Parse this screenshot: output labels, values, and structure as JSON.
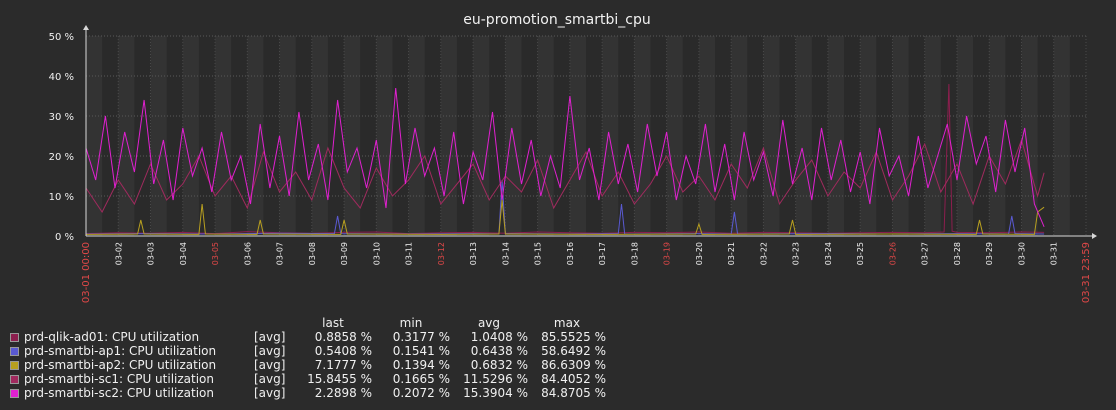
{
  "title": "eu-promotion_smartbi_cpu",
  "y_ticks": [
    "0 %",
    "10 %",
    "20 %",
    "30 %",
    "40 %",
    "50 %"
  ],
  "x_start_label": "03-01 00:00",
  "x_end_label": "03-31 23:59",
  "x_ticks": [
    {
      "label": "03-02",
      "red": false
    },
    {
      "label": "03-03",
      "red": false
    },
    {
      "label": "03-04",
      "red": false
    },
    {
      "label": "03-05",
      "red": true
    },
    {
      "label": "03-06",
      "red": false
    },
    {
      "label": "03-07",
      "red": false
    },
    {
      "label": "03-08",
      "red": false
    },
    {
      "label": "03-09",
      "red": false
    },
    {
      "label": "03-10",
      "red": false
    },
    {
      "label": "03-11",
      "red": false
    },
    {
      "label": "03-12",
      "red": true
    },
    {
      "label": "03-13",
      "red": false
    },
    {
      "label": "03-14",
      "red": false
    },
    {
      "label": "03-15",
      "red": false
    },
    {
      "label": "03-16",
      "red": false
    },
    {
      "label": "03-17",
      "red": false
    },
    {
      "label": "03-18",
      "red": false
    },
    {
      "label": "03-19",
      "red": true
    },
    {
      "label": "03-20",
      "red": false
    },
    {
      "label": "03-21",
      "red": false
    },
    {
      "label": "03-22",
      "red": false
    },
    {
      "label": "03-23",
      "red": false
    },
    {
      "label": "03-24",
      "red": false
    },
    {
      "label": "03-25",
      "red": false
    },
    {
      "label": "03-26",
      "red": true
    },
    {
      "label": "03-27",
      "red": false
    },
    {
      "label": "03-28",
      "red": false
    },
    {
      "label": "03-29",
      "red": false
    },
    {
      "label": "03-30",
      "red": false
    },
    {
      "label": "03-31",
      "red": false
    }
  ],
  "legend_headers": {
    "last": "last",
    "min": "min",
    "avg": "avg",
    "max": "max"
  },
  "chart_data": {
    "type": "line",
    "title": "eu-promotion_smartbi_cpu",
    "x_range": [
      "03-01 00:00",
      "03-31 23:59"
    ],
    "ylim": [
      0,
      50
    ],
    "y_unit": "%",
    "grid": true,
    "series": [
      {
        "name": "prd-qlik-ad01: CPU utilization",
        "color": "#8c1e4e",
        "agg": "[avg]",
        "last": "0.8858 %",
        "min": "0.3177 %",
        "avg": "1.0408 %",
        "max": "85.5525 %",
        "points": [
          [
            1,
            0.6
          ],
          [
            2,
            0.8
          ],
          [
            3,
            0.7
          ],
          [
            4,
            0.9
          ],
          [
            5,
            0.6
          ],
          [
            6,
            1.1
          ],
          [
            7,
            0.8
          ],
          [
            8,
            0.7
          ],
          [
            9,
            0.9
          ],
          [
            10,
            1.0
          ],
          [
            11,
            0.6
          ],
          [
            12,
            0.8
          ],
          [
            13,
            0.9
          ],
          [
            14,
            0.7
          ],
          [
            15,
            1.0
          ],
          [
            16,
            0.8
          ],
          [
            17,
            0.7
          ],
          [
            18,
            0.9
          ],
          [
            19,
            0.8
          ],
          [
            20,
            1.0
          ],
          [
            21,
            0.7
          ],
          [
            22,
            0.9
          ],
          [
            23,
            0.8
          ],
          [
            24,
            0.7
          ],
          [
            25,
            0.8
          ],
          [
            26,
            0.9
          ],
          [
            27,
            0.8
          ],
          [
            27.6,
            1.0
          ],
          [
            27.75,
            38
          ],
          [
            27.85,
            1.2
          ],
          [
            28,
            0.9
          ],
          [
            29,
            0.8
          ],
          [
            30,
            1.0
          ],
          [
            30.7,
            0.9
          ]
        ]
      },
      {
        "name": "prd-smartbi-ap1: CPU utilization",
        "color": "#5a5ad2",
        "agg": "[avg]",
        "last": "0.5408 %",
        "min": "0.1541 %",
        "avg": "0.6438 %",
        "max": "58.6492 %",
        "points": [
          [
            1,
            0.5
          ],
          [
            3,
            0.6
          ],
          [
            5,
            0.5
          ],
          [
            7,
            0.7
          ],
          [
            8.7,
            0.6
          ],
          [
            8.8,
            5
          ],
          [
            8.9,
            0.6
          ],
          [
            11,
            0.5
          ],
          [
            13,
            0.6
          ],
          [
            13.8,
            0.5
          ],
          [
            13.9,
            14
          ],
          [
            14.0,
            0.6
          ],
          [
            16,
            0.5
          ],
          [
            17.5,
            0.6
          ],
          [
            17.6,
            8
          ],
          [
            17.7,
            0.5
          ],
          [
            20,
            0.6
          ],
          [
            21,
            0.5
          ],
          [
            21.1,
            6
          ],
          [
            21.2,
            0.5
          ],
          [
            24,
            0.6
          ],
          [
            26,
            0.5
          ],
          [
            28,
            0.6
          ],
          [
            29.6,
            0.5
          ],
          [
            29.7,
            5
          ],
          [
            29.8,
            0.6
          ],
          [
            30.7,
            0.5
          ]
        ]
      },
      {
        "name": "prd-smartbi-ap2: CPU utilization",
        "color": "#b8a020",
        "agg": "[avg]",
        "last": "7.1777 %",
        "min": "0.1394 %",
        "avg": "0.6832 %",
        "max": "86.6309 %",
        "points": [
          [
            1,
            0.4
          ],
          [
            2.6,
            0.5
          ],
          [
            2.7,
            4
          ],
          [
            2.8,
            0.5
          ],
          [
            4.5,
            0.4
          ],
          [
            4.6,
            8
          ],
          [
            4.7,
            0.5
          ],
          [
            6.3,
            0.4
          ],
          [
            6.4,
            4
          ],
          [
            6.5,
            0.5
          ],
          [
            8.9,
            0.4
          ],
          [
            9.0,
            4
          ],
          [
            9.1,
            0.5
          ],
          [
            12,
            0.4
          ],
          [
            13.8,
            0.5
          ],
          [
            13.9,
            9
          ],
          [
            14.0,
            0.5
          ],
          [
            17,
            0.4
          ],
          [
            19.9,
            0.5
          ],
          [
            20.0,
            3
          ],
          [
            20.1,
            0.4
          ],
          [
            22.8,
            0.5
          ],
          [
            22.9,
            4
          ],
          [
            23.0,
            0.4
          ],
          [
            26,
            0.5
          ],
          [
            28.6,
            0.4
          ],
          [
            28.7,
            4
          ],
          [
            28.8,
            0.5
          ],
          [
            30.4,
            0.4
          ],
          [
            30.5,
            6
          ],
          [
            30.7,
            7.2
          ]
        ]
      },
      {
        "name": "prd-smartbi-sc1: CPU utilization",
        "color": "#a02a5e",
        "agg": "[avg]",
        "last": "15.8455 %",
        "min": "0.1665 %",
        "avg": "11.5296 %",
        "max": "84.4052 %",
        "points": [
          [
            1,
            12
          ],
          [
            1.5,
            6
          ],
          [
            2,
            14
          ],
          [
            2.5,
            8
          ],
          [
            3,
            18
          ],
          [
            3.5,
            9
          ],
          [
            4,
            13
          ],
          [
            4.5,
            20
          ],
          [
            5,
            10
          ],
          [
            5.5,
            15
          ],
          [
            6,
            7
          ],
          [
            6.5,
            21
          ],
          [
            7,
            11
          ],
          [
            7.5,
            16
          ],
          [
            8,
            9
          ],
          [
            8.5,
            22
          ],
          [
            9,
            12
          ],
          [
            9.5,
            7
          ],
          [
            10,
            17
          ],
          [
            10.5,
            10
          ],
          [
            11,
            14
          ],
          [
            11.5,
            20
          ],
          [
            12,
            8
          ],
          [
            12.5,
            13
          ],
          [
            13,
            18
          ],
          [
            13.5,
            9
          ],
          [
            14,
            15
          ],
          [
            14.5,
            11
          ],
          [
            15,
            19
          ],
          [
            15.5,
            7
          ],
          [
            16,
            14
          ],
          [
            16.5,
            21
          ],
          [
            17,
            10
          ],
          [
            17.5,
            16
          ],
          [
            18,
            8
          ],
          [
            18.5,
            13
          ],
          [
            19,
            20
          ],
          [
            19.5,
            11
          ],
          [
            20,
            15
          ],
          [
            20.5,
            9
          ],
          [
            21,
            18
          ],
          [
            21.5,
            12
          ],
          [
            22,
            22
          ],
          [
            22.5,
            8
          ],
          [
            23,
            14
          ],
          [
            23.5,
            19
          ],
          [
            24,
            10
          ],
          [
            24.5,
            16
          ],
          [
            25,
            12
          ],
          [
            25.5,
            21
          ],
          [
            26,
            9
          ],
          [
            26.5,
            15
          ],
          [
            27,
            23
          ],
          [
            27.5,
            11
          ],
          [
            28,
            18
          ],
          [
            28.5,
            8
          ],
          [
            29,
            20
          ],
          [
            29.5,
            13
          ],
          [
            30,
            24
          ],
          [
            30.5,
            10
          ],
          [
            30.7,
            15.8
          ]
        ]
      },
      {
        "name": "prd-smartbi-sc2: CPU utilization",
        "color": "#e020d0",
        "agg": "[avg]",
        "last": "2.2898 %",
        "min": "0.2072 %",
        "avg": "15.3904 %",
        "max": "84.8705 %",
        "points": [
          [
            1,
            22
          ],
          [
            1.3,
            14
          ],
          [
            1.6,
            30
          ],
          [
            1.9,
            12
          ],
          [
            2.2,
            26
          ],
          [
            2.5,
            16
          ],
          [
            2.8,
            34
          ],
          [
            3.1,
            13
          ],
          [
            3.4,
            24
          ],
          [
            3.7,
            9
          ],
          [
            4,
            27
          ],
          [
            4.3,
            15
          ],
          [
            4.6,
            22
          ],
          [
            4.9,
            11
          ],
          [
            5.2,
            26
          ],
          [
            5.5,
            14
          ],
          [
            5.8,
            20
          ],
          [
            6.1,
            8
          ],
          [
            6.4,
            28
          ],
          [
            6.7,
            12
          ],
          [
            7,
            25
          ],
          [
            7.3,
            10
          ],
          [
            7.6,
            31
          ],
          [
            7.9,
            14
          ],
          [
            8.2,
            23
          ],
          [
            8.5,
            9
          ],
          [
            8.8,
            34
          ],
          [
            9.1,
            16
          ],
          [
            9.4,
            22
          ],
          [
            9.7,
            12
          ],
          [
            10,
            24
          ],
          [
            10.3,
            7
          ],
          [
            10.6,
            37
          ],
          [
            10.9,
            13
          ],
          [
            11.2,
            27
          ],
          [
            11.5,
            15
          ],
          [
            11.8,
            22
          ],
          [
            12.1,
            10
          ],
          [
            12.4,
            26
          ],
          [
            12.7,
            8
          ],
          [
            13,
            21
          ],
          [
            13.3,
            14
          ],
          [
            13.6,
            31
          ],
          [
            13.9,
            9
          ],
          [
            14.2,
            27
          ],
          [
            14.5,
            13
          ],
          [
            14.8,
            24
          ],
          [
            15.1,
            10
          ],
          [
            15.4,
            20
          ],
          [
            15.7,
            12
          ],
          [
            16,
            35
          ],
          [
            16.3,
            14
          ],
          [
            16.6,
            22
          ],
          [
            16.9,
            9
          ],
          [
            17.2,
            26
          ],
          [
            17.5,
            13
          ],
          [
            17.8,
            23
          ],
          [
            18.1,
            11
          ],
          [
            18.4,
            28
          ],
          [
            18.7,
            15
          ],
          [
            19,
            26
          ],
          [
            19.3,
            9
          ],
          [
            19.6,
            20
          ],
          [
            19.9,
            13
          ],
          [
            20.2,
            28
          ],
          [
            20.5,
            11
          ],
          [
            20.8,
            23
          ],
          [
            21.1,
            9
          ],
          [
            21.4,
            26
          ],
          [
            21.7,
            14
          ],
          [
            22,
            21
          ],
          [
            22.3,
            10
          ],
          [
            22.6,
            29
          ],
          [
            22.9,
            13
          ],
          [
            23.2,
            22
          ],
          [
            23.5,
            9
          ],
          [
            23.8,
            27
          ],
          [
            24.1,
            14
          ],
          [
            24.4,
            24
          ],
          [
            24.7,
            11
          ],
          [
            25,
            21
          ],
          [
            25.3,
            8
          ],
          [
            25.6,
            27
          ],
          [
            25.9,
            15
          ],
          [
            26.2,
            20
          ],
          [
            26.5,
            10
          ],
          [
            26.8,
            25
          ],
          [
            27.1,
            12
          ],
          [
            27.4,
            20
          ],
          [
            27.7,
            28
          ],
          [
            28,
            14
          ],
          [
            28.3,
            30
          ],
          [
            28.6,
            18
          ],
          [
            28.9,
            25
          ],
          [
            29.2,
            11
          ],
          [
            29.5,
            29
          ],
          [
            29.8,
            16
          ],
          [
            30.1,
            27
          ],
          [
            30.4,
            8
          ],
          [
            30.7,
            2.3
          ]
        ]
      }
    ]
  }
}
